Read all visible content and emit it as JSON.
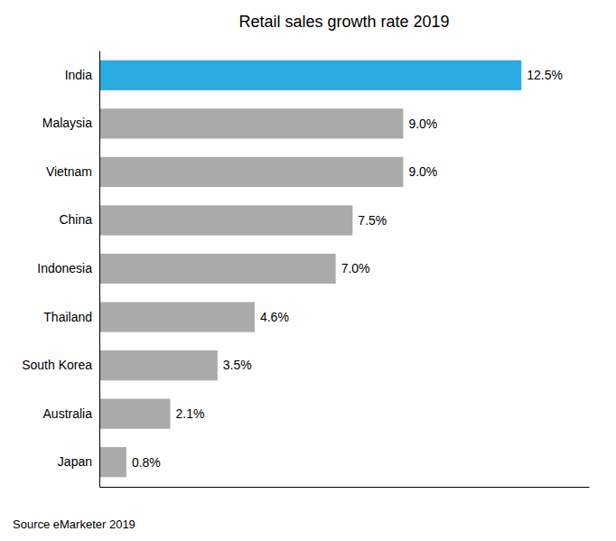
{
  "chart_data": {
    "type": "bar",
    "orientation": "horizontal",
    "title": "Retail sales growth rate 2019",
    "categories": [
      "Japan",
      "Australia",
      "South Korea",
      "Thailand",
      "Indonesia",
      "China",
      "Vietnam",
      "Malaysia",
      "India"
    ],
    "values": [
      0.8,
      2.1,
      3.5,
      4.6,
      7.0,
      7.5,
      9.0,
      9.0,
      12.5
    ],
    "value_labels": [
      "0.8%",
      "2.1%",
      "3.5%",
      "4.6%",
      "7.0%",
      "7.5%",
      "9.0%",
      "9.0%",
      "12.5%"
    ],
    "colors": [
      "#aaaaaa",
      "#aaaaaa",
      "#aaaaaa",
      "#aaaaaa",
      "#aaaaaa",
      "#aaaaaa",
      "#aaaaaa",
      "#aaaaaa",
      "#29abe2"
    ],
    "xlim": [
      0,
      14.5
    ],
    "grid": false,
    "data_labels": true,
    "tick_labels": "y",
    "annotations": [
      "Source eMarketer 2019"
    ]
  }
}
